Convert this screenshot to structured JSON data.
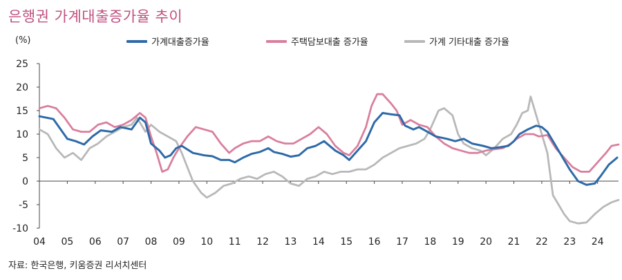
{
  "header": {
    "title": "은행권 가계대출증가율 추이",
    "unit": "(%)"
  },
  "footer": {
    "source": "자료: 한국은행, 키움증권 리서치센터"
  },
  "chart_data": {
    "type": "line",
    "title": "은행권 가계대출증가율 추이",
    "xlabel": "",
    "ylabel": "(%)",
    "ylim": [
      -10,
      25
    ],
    "yticks": [
      25,
      20,
      15,
      10,
      5,
      0,
      -5,
      -10
    ],
    "xlim": [
      2004,
      2024.75
    ],
    "xticks": [
      "04",
      "05",
      "06",
      "07",
      "08",
      "09",
      "10",
      "11",
      "12",
      "13",
      "14",
      "15",
      "16",
      "17",
      "18",
      "19",
      "20",
      "21",
      "22",
      "23",
      "24"
    ],
    "grid": false,
    "legend_position": "top",
    "series": [
      {
        "name": "가계대출증가율",
        "color": "#2e6aa8",
        "points": [
          [
            2004.0,
            13.8
          ],
          [
            2004.5,
            13.2
          ],
          [
            2005.0,
            9.0
          ],
          [
            2005.3,
            8.5
          ],
          [
            2005.6,
            7.8
          ],
          [
            2005.9,
            9.5
          ],
          [
            2006.2,
            10.8
          ],
          [
            2006.6,
            10.5
          ],
          [
            2006.9,
            11.5
          ],
          [
            2007.3,
            11.0
          ],
          [
            2007.6,
            13.5
          ],
          [
            2007.8,
            12.5
          ],
          [
            2008.0,
            8.0
          ],
          [
            2008.3,
            6.5
          ],
          [
            2008.5,
            5.0
          ],
          [
            2008.7,
            5.5
          ],
          [
            2008.9,
            7.0
          ],
          [
            2009.1,
            7.5
          ],
          [
            2009.5,
            6.0
          ],
          [
            2009.9,
            5.5
          ],
          [
            2010.2,
            5.3
          ],
          [
            2010.5,
            4.5
          ],
          [
            2010.8,
            4.5
          ],
          [
            2011.0,
            4.0
          ],
          [
            2011.3,
            5.0
          ],
          [
            2011.6,
            5.8
          ],
          [
            2011.9,
            6.2
          ],
          [
            2012.2,
            7.0
          ],
          [
            2012.4,
            6.2
          ],
          [
            2012.7,
            5.8
          ],
          [
            2013.0,
            5.2
          ],
          [
            2013.3,
            5.5
          ],
          [
            2013.6,
            7.0
          ],
          [
            2013.9,
            7.5
          ],
          [
            2014.2,
            8.5
          ],
          [
            2014.6,
            6.5
          ],
          [
            2014.9,
            5.5
          ],
          [
            2015.1,
            4.5
          ],
          [
            2015.4,
            6.5
          ],
          [
            2015.7,
            8.5
          ],
          [
            2016.0,
            12.5
          ],
          [
            2016.3,
            14.5
          ],
          [
            2016.6,
            14.2
          ],
          [
            2016.9,
            14.0
          ],
          [
            2017.1,
            11.8
          ],
          [
            2017.4,
            11.0
          ],
          [
            2017.6,
            11.5
          ],
          [
            2017.9,
            10.5
          ],
          [
            2018.2,
            9.5
          ],
          [
            2018.6,
            9.0
          ],
          [
            2018.9,
            8.5
          ],
          [
            2019.2,
            9.0
          ],
          [
            2019.5,
            8.0
          ],
          [
            2019.9,
            7.5
          ],
          [
            2020.2,
            7.0
          ],
          [
            2020.5,
            7.2
          ],
          [
            2020.8,
            7.5
          ],
          [
            2021.0,
            8.5
          ],
          [
            2021.2,
            10.0
          ],
          [
            2021.5,
            11.0
          ],
          [
            2021.8,
            11.8
          ],
          [
            2022.0,
            11.5
          ],
          [
            2022.2,
            10.5
          ],
          [
            2022.4,
            8.5
          ],
          [
            2022.7,
            5.5
          ],
          [
            2023.0,
            2.5
          ],
          [
            2023.3,
            0.0
          ],
          [
            2023.6,
            -0.8
          ],
          [
            2023.9,
            -0.5
          ],
          [
            2024.1,
            1.0
          ],
          [
            2024.4,
            3.5
          ],
          [
            2024.7,
            5.0
          ]
        ]
      },
      {
        "name": "주택담보대출 증가율",
        "color": "#d97f9e",
        "points": [
          [
            2004.0,
            15.5
          ],
          [
            2004.3,
            16.0
          ],
          [
            2004.6,
            15.5
          ],
          [
            2004.9,
            13.5
          ],
          [
            2005.2,
            11.0
          ],
          [
            2005.5,
            10.5
          ],
          [
            2005.8,
            10.5
          ],
          [
            2006.1,
            12.0
          ],
          [
            2006.4,
            12.5
          ],
          [
            2006.7,
            11.5
          ],
          [
            2007.0,
            12.0
          ],
          [
            2007.3,
            13.0
          ],
          [
            2007.6,
            14.5
          ],
          [
            2007.8,
            13.5
          ],
          [
            2008.0,
            9.5
          ],
          [
            2008.2,
            6.0
          ],
          [
            2008.4,
            2.0
          ],
          [
            2008.6,
            2.5
          ],
          [
            2008.8,
            5.0
          ],
          [
            2009.0,
            7.0
          ],
          [
            2009.3,
            9.5
          ],
          [
            2009.6,
            11.5
          ],
          [
            2009.9,
            11.0
          ],
          [
            2010.2,
            10.5
          ],
          [
            2010.5,
            8.0
          ],
          [
            2010.8,
            6.0
          ],
          [
            2011.0,
            7.0
          ],
          [
            2011.3,
            8.0
          ],
          [
            2011.6,
            8.5
          ],
          [
            2011.9,
            8.5
          ],
          [
            2012.2,
            9.5
          ],
          [
            2012.5,
            8.5
          ],
          [
            2012.8,
            8.0
          ],
          [
            2013.1,
            8.0
          ],
          [
            2013.4,
            9.0
          ],
          [
            2013.7,
            10.0
          ],
          [
            2014.0,
            11.5
          ],
          [
            2014.3,
            10.0
          ],
          [
            2014.6,
            7.5
          ],
          [
            2014.9,
            6.0
          ],
          [
            2015.1,
            5.5
          ],
          [
            2015.4,
            7.5
          ],
          [
            2015.7,
            11.5
          ],
          [
            2015.9,
            16.0
          ],
          [
            2016.1,
            18.5
          ],
          [
            2016.3,
            18.5
          ],
          [
            2016.6,
            16.5
          ],
          [
            2016.8,
            15.0
          ],
          [
            2017.0,
            12.0
          ],
          [
            2017.3,
            13.0
          ],
          [
            2017.6,
            12.0
          ],
          [
            2017.9,
            11.5
          ],
          [
            2018.2,
            9.5
          ],
          [
            2018.5,
            8.0
          ],
          [
            2018.8,
            7.0
          ],
          [
            2019.1,
            6.5
          ],
          [
            2019.4,
            6.0
          ],
          [
            2019.7,
            6.0
          ],
          [
            2020.0,
            6.5
          ],
          [
            2020.3,
            6.8
          ],
          [
            2020.6,
            7.0
          ],
          [
            2020.9,
            8.0
          ],
          [
            2021.1,
            9.0
          ],
          [
            2021.4,
            10.0
          ],
          [
            2021.7,
            10.0
          ],
          [
            2021.9,
            9.5
          ],
          [
            2022.2,
            9.8
          ],
          [
            2022.5,
            7.0
          ],
          [
            2022.8,
            5.0
          ],
          [
            2023.1,
            3.0
          ],
          [
            2023.4,
            2.0
          ],
          [
            2023.7,
            2.0
          ],
          [
            2024.0,
            4.0
          ],
          [
            2024.3,
            6.0
          ],
          [
            2024.5,
            7.5
          ],
          [
            2024.75,
            7.8
          ]
        ]
      },
      {
        "name": "가계 기타대출 증가율",
        "color": "#b8b8b8",
        "points": [
          [
            2004.0,
            11.0
          ],
          [
            2004.3,
            10.0
          ],
          [
            2004.6,
            7.0
          ],
          [
            2004.9,
            5.0
          ],
          [
            2005.2,
            6.0
          ],
          [
            2005.5,
            4.5
          ],
          [
            2005.8,
            7.0
          ],
          [
            2006.1,
            8.0
          ],
          [
            2006.4,
            9.5
          ],
          [
            2006.7,
            10.5
          ],
          [
            2007.0,
            11.5
          ],
          [
            2007.3,
            12.0
          ],
          [
            2007.5,
            13.5
          ],
          [
            2007.8,
            10.5
          ],
          [
            2008.0,
            12.0
          ],
          [
            2008.3,
            10.5
          ],
          [
            2008.6,
            9.5
          ],
          [
            2008.9,
            8.5
          ],
          [
            2009.1,
            6.0
          ],
          [
            2009.3,
            3.0
          ],
          [
            2009.5,
            0.0
          ],
          [
            2009.8,
            -2.5
          ],
          [
            2010.0,
            -3.5
          ],
          [
            2010.3,
            -2.5
          ],
          [
            2010.6,
            -1.0
          ],
          [
            2010.9,
            -0.5
          ],
          [
            2011.2,
            0.5
          ],
          [
            2011.5,
            1.0
          ],
          [
            2011.8,
            0.5
          ],
          [
            2012.1,
            1.5
          ],
          [
            2012.4,
            2.0
          ],
          [
            2012.7,
            1.0
          ],
          [
            2013.0,
            -0.5
          ],
          [
            2013.3,
            -1.0
          ],
          [
            2013.6,
            0.5
          ],
          [
            2013.9,
            1.0
          ],
          [
            2014.2,
            2.0
          ],
          [
            2014.5,
            1.5
          ],
          [
            2014.8,
            2.0
          ],
          [
            2015.1,
            2.0
          ],
          [
            2015.4,
            2.5
          ],
          [
            2015.7,
            2.5
          ],
          [
            2016.0,
            3.5
          ],
          [
            2016.3,
            5.0
          ],
          [
            2016.6,
            6.0
          ],
          [
            2016.9,
            7.0
          ],
          [
            2017.2,
            7.5
          ],
          [
            2017.5,
            8.0
          ],
          [
            2017.8,
            9.0
          ],
          [
            2018.0,
            11.0
          ],
          [
            2018.3,
            15.0
          ],
          [
            2018.5,
            15.5
          ],
          [
            2018.8,
            14.0
          ],
          [
            2019.0,
            10.0
          ],
          [
            2019.2,
            8.0
          ],
          [
            2019.5,
            7.0
          ],
          [
            2019.8,
            6.5
          ],
          [
            2020.0,
            5.5
          ],
          [
            2020.3,
            7.0
          ],
          [
            2020.6,
            9.0
          ],
          [
            2020.9,
            10.0
          ],
          [
            2021.1,
            12.0
          ],
          [
            2021.3,
            14.5
          ],
          [
            2021.5,
            15.0
          ],
          [
            2021.6,
            18.0
          ],
          [
            2021.8,
            14.0
          ],
          [
            2022.0,
            10.0
          ],
          [
            2022.2,
            6.0
          ],
          [
            2022.4,
            -3.0
          ],
          [
            2022.6,
            -5.0
          ],
          [
            2022.8,
            -7.0
          ],
          [
            2023.0,
            -8.5
          ],
          [
            2023.3,
            -9.0
          ],
          [
            2023.6,
            -8.8
          ],
          [
            2023.9,
            -7.0
          ],
          [
            2024.2,
            -5.5
          ],
          [
            2024.5,
            -4.5
          ],
          [
            2024.75,
            -4.0
          ]
        ]
      }
    ]
  }
}
